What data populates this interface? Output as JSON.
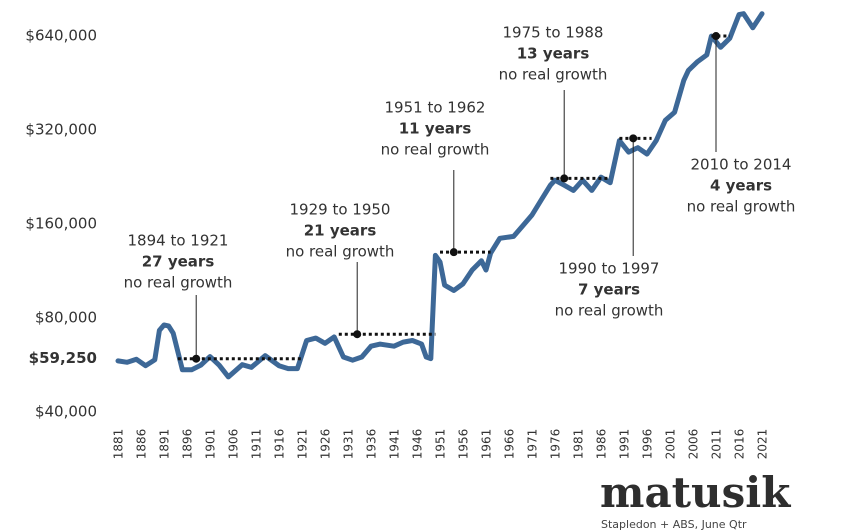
{
  "chart_data": {
    "type": "line",
    "log_scale": true,
    "color": "#3d6897",
    "x": [
      1881,
      1883,
      1885,
      1887,
      1889,
      1890,
      1891,
      1892,
      1893,
      1895,
      1897,
      1899,
      1901,
      1903,
      1905,
      1908,
      1910,
      1913,
      1916,
      1918,
      1920,
      1922,
      1924,
      1926,
      1928,
      1930,
      1932,
      1934,
      1936,
      1938,
      1941,
      1943,
      1945,
      1947,
      1948,
      1949,
      1950,
      1951,
      1952,
      1954,
      1956,
      1958,
      1960,
      1961,
      1962,
      1964,
      1967,
      1969,
      1971,
      1973,
      1975,
      1976,
      1978,
      1980,
      1982,
      1984,
      1986,
      1988,
      1990,
      1992,
      1994,
      1996,
      1998,
      2000,
      2002,
      2004,
      2005,
      2007,
      2009,
      2010,
      2012,
      2014,
      2016,
      2017,
      2019,
      2021
    ],
    "values": [
      58300,
      57700,
      59000,
      56300,
      58800,
      73000,
      76000,
      75500,
      71500,
      54600,
      54600,
      56500,
      60200,
      56500,
      51800,
      56700,
      55600,
      60600,
      56300,
      55100,
      55100,
      67800,
      69000,
      66400,
      69600,
      60000,
      58600,
      60000,
      65000,
      66000,
      65000,
      67000,
      67800,
      66000,
      60000,
      59300,
      127000,
      121000,
      102000,
      98000,
      103000,
      114000,
      122000,
      114000,
      129000,
      144000,
      146000,
      158000,
      171000,
      191000,
      213000,
      221000,
      213000,
      205000,
      221000,
      205000,
      226000,
      217000,
      296000,
      272000,
      281000,
      268000,
      296000,
      344000,
      365000,
      462000,
      497000,
      530000,
      557000,
      640000,
      589000,
      630000,
      750000,
      755000,
      680000,
      755000
    ],
    "xlim": [
      1881,
      2021
    ],
    "xticks": [
      1881,
      1886,
      1891,
      1896,
      1901,
      1906,
      1911,
      1916,
      1921,
      1926,
      1931,
      1936,
      1941,
      1946,
      1951,
      1956,
      1961,
      1966,
      1971,
      1976,
      1981,
      1986,
      1991,
      1996,
      2001,
      2006,
      2011,
      2016,
      2021
    ],
    "ylim": [
      40000,
      835000
    ],
    "yticks": [
      {
        "value": 40000,
        "label": "$40,000"
      },
      {
        "value": 59250,
        "label": "$59,250"
      },
      {
        "value": 80000,
        "label": "$80,000"
      },
      {
        "value": 160000,
        "label": "$160,000"
      },
      {
        "value": 320000,
        "label": "$320,000"
      },
      {
        "value": 640000,
        "label": "$640,000"
      }
    ],
    "annotations": [
      {
        "period": "1894 to 1921",
        "years": "27 years",
        "note": "no real growth",
        "start": 1894,
        "end": 1921,
        "level": 59250
      },
      {
        "period": "1929 to 1950",
        "years": "21 years",
        "note": "no real growth",
        "start": 1929,
        "end": 1950,
        "level": 71000
      },
      {
        "period": "1951 to 1962",
        "years": "11 years",
        "note": "no real growth",
        "start": 1951,
        "end": 1962,
        "level": 130000
      },
      {
        "period": "1975 to 1988",
        "years": "13 years",
        "note": "no real growth",
        "start": 1975,
        "end": 1988,
        "level": 224000
      },
      {
        "period": "1990 to 1997",
        "years": "7 years",
        "note": "no real growth",
        "start": 1990,
        "end": 1997,
        "level": 301000
      },
      {
        "period": "2010 to 2014",
        "years": "4 years",
        "note": "no real growth",
        "start": 2010,
        "end": 2014,
        "level": 640000
      }
    ],
    "brand": "matusik",
    "source": "Stapledon + ABS, June Qtr"
  }
}
